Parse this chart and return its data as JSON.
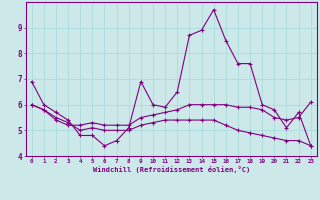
{
  "xlabel": "Windchill (Refroidissement éolien,°C)",
  "ylabel": "",
  "bg_color": "#cce8e8",
  "line_color": "#800080",
  "grid_color": "#aadddd",
  "xlim": [
    -0.5,
    23.5
  ],
  "ylim": [
    4,
    10
  ],
  "yticks": [
    4,
    5,
    6,
    7,
    8,
    9
  ],
  "xticks": [
    0,
    1,
    2,
    3,
    4,
    5,
    6,
    7,
    8,
    9,
    10,
    11,
    12,
    13,
    14,
    15,
    16,
    17,
    18,
    19,
    20,
    21,
    22,
    23
  ],
  "line1_x": [
    0,
    1,
    2,
    3,
    4,
    5,
    6,
    7,
    8,
    9,
    10,
    11,
    12,
    13,
    14,
    15,
    16,
    17,
    18,
    19,
    20,
    21,
    22,
    23
  ],
  "line1_y": [
    6.9,
    6.0,
    5.7,
    5.4,
    4.8,
    4.8,
    4.4,
    4.6,
    5.1,
    6.9,
    6.0,
    5.9,
    6.5,
    8.7,
    8.9,
    9.7,
    8.5,
    7.6,
    7.6,
    6.0,
    5.8,
    5.1,
    5.7,
    4.4
  ],
  "line2_x": [
    0,
    1,
    2,
    3,
    4,
    5,
    6,
    7,
    8,
    9,
    10,
    11,
    12,
    13,
    14,
    15,
    16,
    17,
    18,
    19,
    20,
    21,
    22,
    23
  ],
  "line2_y": [
    6.0,
    5.8,
    5.4,
    5.2,
    5.2,
    5.3,
    5.2,
    5.2,
    5.2,
    5.5,
    5.6,
    5.7,
    5.8,
    6.0,
    6.0,
    6.0,
    6.0,
    5.9,
    5.9,
    5.8,
    5.5,
    5.4,
    5.5,
    6.1
  ],
  "line3_x": [
    0,
    1,
    2,
    3,
    4,
    5,
    6,
    7,
    8,
    9,
    10,
    11,
    12,
    13,
    14,
    15,
    16,
    17,
    18,
    19,
    20,
    21,
    22,
    23
  ],
  "line3_y": [
    6.0,
    5.8,
    5.5,
    5.3,
    5.0,
    5.1,
    5.0,
    5.0,
    5.0,
    5.2,
    5.3,
    5.4,
    5.4,
    5.4,
    5.4,
    5.4,
    5.2,
    5.0,
    4.9,
    4.8,
    4.7,
    4.6,
    4.6,
    4.4
  ]
}
